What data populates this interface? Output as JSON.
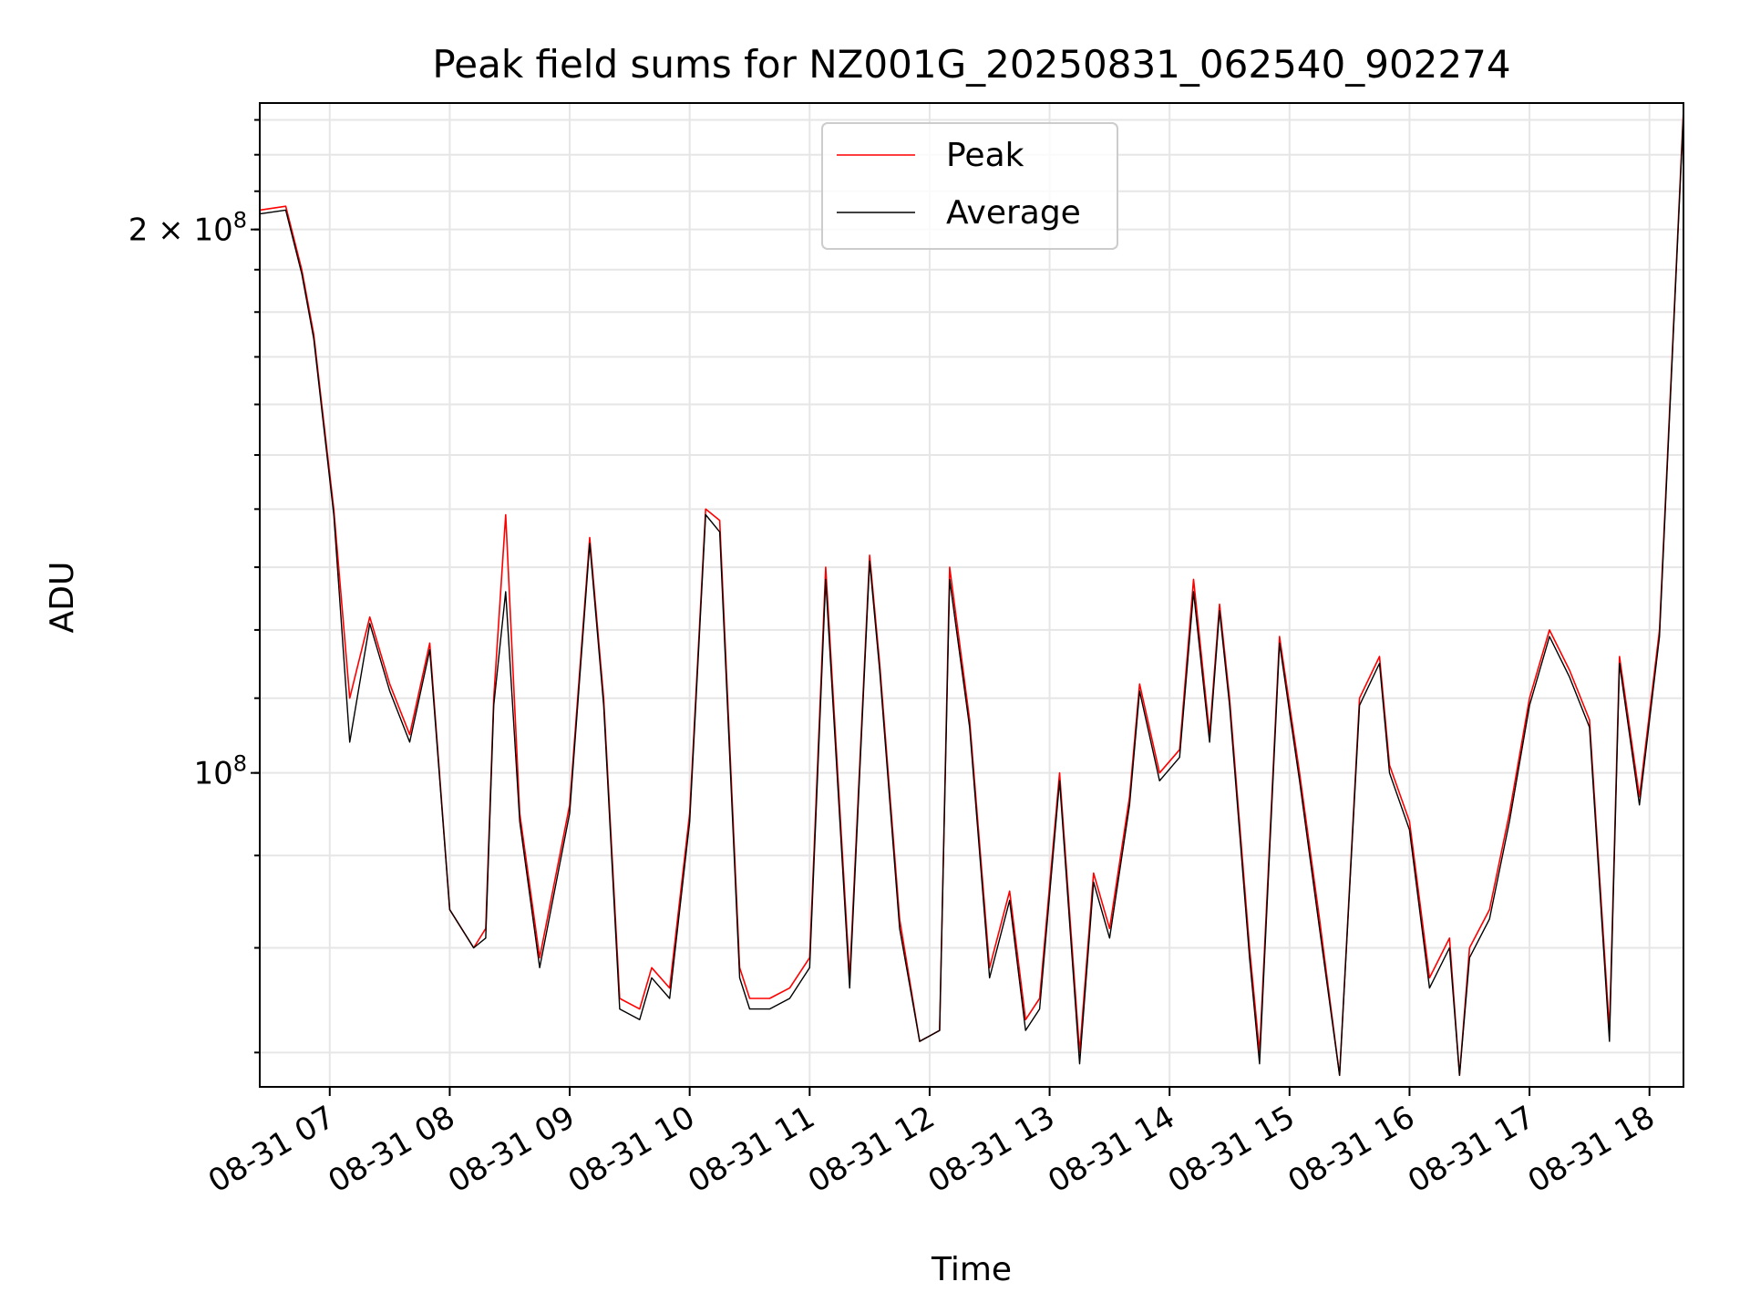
{
  "chart_data": {
    "type": "line",
    "title": "Peak field sums for NZ001G_20250831_062540_902274",
    "xlabel": "Time",
    "ylabel": "ADU",
    "yscale": "log",
    "ylim": [
      67000000,
      235000000
    ],
    "xlim": [
      "2025-08-31 06:25",
      "2025-08-31 18:17"
    ],
    "x_ticks": [
      "08-31 07",
      "08-31 08",
      "08-31 09",
      "08-31 10",
      "08-31 11",
      "08-31 12",
      "08-31 13",
      "08-31 14",
      "08-31 15",
      "08-31 16",
      "08-31 17",
      "08-31 18"
    ],
    "y_ticks": [
      {
        "value": 200000000,
        "base": "2 × 10",
        "exp": "8"
      },
      {
        "value": 100000000,
        "base": "10",
        "exp": "8"
      }
    ],
    "grid": true,
    "legend": "upper center",
    "colors": {
      "peak": "#ff0000",
      "average": "#000000"
    },
    "series": [
      {
        "name": "Peak",
        "x": [
          "2025-08-31 06:25",
          "2025-08-31 06:38",
          "2025-08-31 06:46",
          "2025-08-31 06:52",
          "2025-08-31 06:56",
          "2025-08-31 07:02",
          "2025-08-31 07:10",
          "2025-08-31 07:20",
          "2025-08-31 07:30",
          "2025-08-31 07:40",
          "2025-08-31 07:50",
          "2025-08-31 08:00",
          "2025-08-31 08:12",
          "2025-08-31 08:18",
          "2025-08-31 08:22",
          "2025-08-31 08:28",
          "2025-08-31 08:35",
          "2025-08-31 08:45",
          "2025-08-31 08:55",
          "2025-08-31 09:00",
          "2025-08-31 09:10",
          "2025-08-31 09:17",
          "2025-08-31 09:25",
          "2025-08-31 09:35",
          "2025-08-31 09:41",
          "2025-08-31 09:50",
          "2025-08-31 10:00",
          "2025-08-31 10:08",
          "2025-08-31 10:15",
          "2025-08-31 10:25",
          "2025-08-31 10:30",
          "2025-08-31 10:40",
          "2025-08-31 10:50",
          "2025-08-31 11:00",
          "2025-08-31 11:08",
          "2025-08-31 11:20",
          "2025-08-31 11:30",
          "2025-08-31 11:35",
          "2025-08-31 11:45",
          "2025-08-31 11:55",
          "2025-08-31 12:05",
          "2025-08-31 12:10",
          "2025-08-31 12:20",
          "2025-08-31 12:30",
          "2025-08-31 12:40",
          "2025-08-31 12:48",
          "2025-08-31 12:55",
          "2025-08-31 13:05",
          "2025-08-31 13:15",
          "2025-08-31 13:22",
          "2025-08-31 13:30",
          "2025-08-31 13:40",
          "2025-08-31 13:45",
          "2025-08-31 13:55",
          "2025-08-31 14:05",
          "2025-08-31 14:12",
          "2025-08-31 14:20",
          "2025-08-31 14:25",
          "2025-08-31 14:30",
          "2025-08-31 14:40",
          "2025-08-31 14:45",
          "2025-08-31 14:55",
          "2025-08-31 15:05",
          "2025-08-31 15:15",
          "2025-08-31 15:25",
          "2025-08-31 15:35",
          "2025-08-31 15:45",
          "2025-08-31 15:50",
          "2025-08-31 16:00",
          "2025-08-31 16:10",
          "2025-08-31 16:20",
          "2025-08-31 16:25",
          "2025-08-31 16:30",
          "2025-08-31 16:40",
          "2025-08-31 16:50",
          "2025-08-31 17:00",
          "2025-08-31 17:10",
          "2025-08-31 17:20",
          "2025-08-31 17:30",
          "2025-08-31 17:40",
          "2025-08-31 17:45",
          "2025-08-31 17:55",
          "2025-08-31 18:05",
          "2025-08-31 18:17"
        ],
        "y": [
          205000000,
          206000000,
          190000000,
          175000000,
          160000000,
          140000000,
          110000000,
          122000000,
          112000000,
          105000000,
          118000000,
          84000000,
          80000000,
          82000000,
          110000000,
          139000000,
          95000000,
          79000000,
          90000000,
          96000000,
          135000000,
          110000000,
          75000000,
          74000000,
          78000000,
          76000000,
          95000000,
          140000000,
          138000000,
          78000000,
          75000000,
          75000000,
          76000000,
          79000000,
          130000000,
          77000000,
          132000000,
          115000000,
          83000000,
          71000000,
          72000000,
          130000000,
          107000000,
          78000000,
          86000000,
          73000000,
          75000000,
          100000000,
          70000000,
          88000000,
          82000000,
          97000000,
          112000000,
          100000000,
          103000000,
          128000000,
          105000000,
          124000000,
          110000000,
          80000000,
          70000000,
          119000000,
          100000000,
          83000000,
          68000000,
          110000000,
          116000000,
          101000000,
          94000000,
          77000000,
          81000000,
          68000000,
          80000000,
          84000000,
          95000000,
          110000000,
          120000000,
          114000000,
          107000000,
          72000000,
          116000000,
          97000000,
          120000000,
          233000000
        ]
      },
      {
        "name": "Average",
        "x": [
          "2025-08-31 06:25",
          "2025-08-31 06:38",
          "2025-08-31 06:46",
          "2025-08-31 06:52",
          "2025-08-31 06:56",
          "2025-08-31 07:02",
          "2025-08-31 07:10",
          "2025-08-31 07:20",
          "2025-08-31 07:30",
          "2025-08-31 07:40",
          "2025-08-31 07:50",
          "2025-08-31 08:00",
          "2025-08-31 08:12",
          "2025-08-31 08:18",
          "2025-08-31 08:22",
          "2025-08-31 08:28",
          "2025-08-31 08:35",
          "2025-08-31 08:45",
          "2025-08-31 08:55",
          "2025-08-31 09:00",
          "2025-08-31 09:10",
          "2025-08-31 09:17",
          "2025-08-31 09:25",
          "2025-08-31 09:35",
          "2025-08-31 09:41",
          "2025-08-31 09:50",
          "2025-08-31 10:00",
          "2025-08-31 10:08",
          "2025-08-31 10:15",
          "2025-08-31 10:25",
          "2025-08-31 10:30",
          "2025-08-31 10:40",
          "2025-08-31 10:50",
          "2025-08-31 11:00",
          "2025-08-31 11:08",
          "2025-08-31 11:20",
          "2025-08-31 11:30",
          "2025-08-31 11:35",
          "2025-08-31 11:45",
          "2025-08-31 11:55",
          "2025-08-31 12:05",
          "2025-08-31 12:10",
          "2025-08-31 12:20",
          "2025-08-31 12:30",
          "2025-08-31 12:40",
          "2025-08-31 12:48",
          "2025-08-31 12:55",
          "2025-08-31 13:05",
          "2025-08-31 13:15",
          "2025-08-31 13:22",
          "2025-08-31 13:30",
          "2025-08-31 13:40",
          "2025-08-31 13:45",
          "2025-08-31 13:55",
          "2025-08-31 14:05",
          "2025-08-31 14:12",
          "2025-08-31 14:20",
          "2025-08-31 14:25",
          "2025-08-31 14:30",
          "2025-08-31 14:40",
          "2025-08-31 14:45",
          "2025-08-31 14:55",
          "2025-08-31 15:05",
          "2025-08-31 15:15",
          "2025-08-31 15:25",
          "2025-08-31 15:35",
          "2025-08-31 15:45",
          "2025-08-31 15:50",
          "2025-08-31 16:00",
          "2025-08-31 16:10",
          "2025-08-31 16:20",
          "2025-08-31 16:25",
          "2025-08-31 16:30",
          "2025-08-31 16:40",
          "2025-08-31 16:50",
          "2025-08-31 17:00",
          "2025-08-31 17:10",
          "2025-08-31 17:20",
          "2025-08-31 17:30",
          "2025-08-31 17:40",
          "2025-08-31 17:45",
          "2025-08-31 17:55",
          "2025-08-31 18:05",
          "2025-08-31 18:17"
        ],
        "y": [
          204000000,
          205000000,
          189000000,
          174000000,
          159000000,
          139000000,
          104000000,
          121000000,
          111000000,
          104000000,
          117000000,
          84000000,
          80000000,
          81000000,
          109000000,
          126000000,
          94000000,
          78000000,
          89000000,
          95000000,
          134000000,
          109000000,
          74000000,
          73000000,
          77000000,
          75000000,
          94000000,
          139000000,
          136000000,
          77000000,
          74000000,
          74000000,
          75000000,
          78000000,
          128000000,
          76000000,
          131000000,
          114000000,
          82000000,
          71000000,
          72000000,
          128000000,
          106000000,
          77000000,
          85000000,
          72000000,
          74000000,
          99000000,
          69000000,
          87000000,
          81000000,
          96000000,
          111000000,
          99000000,
          102000000,
          126000000,
          104000000,
          123000000,
          109000000,
          79000000,
          69000000,
          118000000,
          99000000,
          82000000,
          68000000,
          109000000,
          115000000,
          100000000,
          93000000,
          76000000,
          80000000,
          68000000,
          79000000,
          83000000,
          94000000,
          109000000,
          119000000,
          113000000,
          106000000,
          71000000,
          115000000,
          96000000,
          119000000,
          232000000
        ]
      }
    ]
  }
}
